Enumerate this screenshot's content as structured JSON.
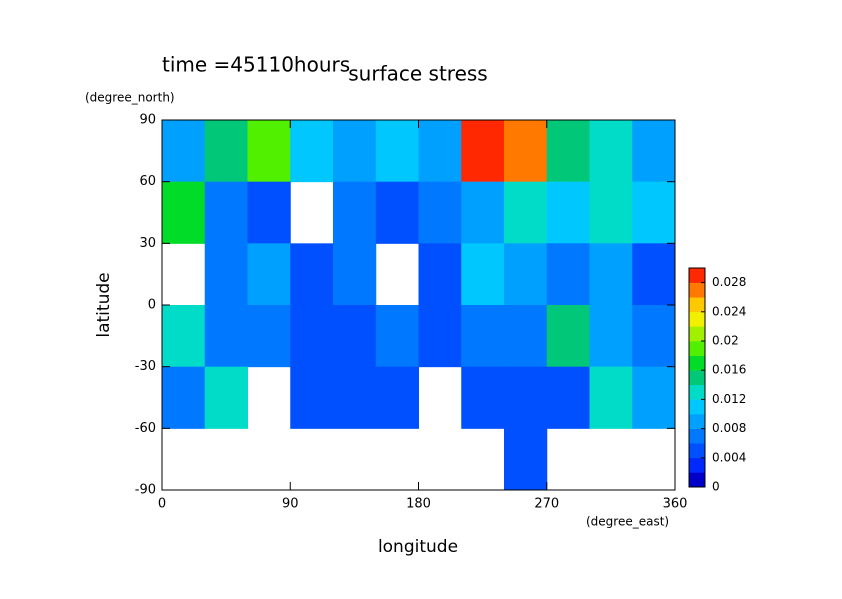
{
  "chart_data": {
    "type": "contour",
    "title": "surface stress",
    "annotation": "time =45110hours",
    "xlabel": "longitude",
    "ylabel": "latitude",
    "xunit": "(degree_east)",
    "yunit": "(degree_north)",
    "xlim": [
      0,
      360
    ],
    "xticks": [
      0,
      90,
      180,
      270,
      360
    ],
    "ylim": [
      -90,
      90
    ],
    "yticks": [
      -90,
      -60,
      -30,
      0,
      30,
      60,
      90
    ],
    "x": [
      0,
      30,
      60,
      90,
      120,
      150,
      180,
      210,
      240,
      270,
      300,
      330,
      360
    ],
    "y": [
      90,
      60,
      30,
      0,
      -30,
      -60,
      -90
    ],
    "z": [
      [
        0.008,
        0.014,
        0.018,
        0.01,
        0.008,
        0.01,
        0.008,
        0.028,
        0.026,
        0.014,
        0.012,
        0.008
      ],
      [
        0.016,
        0.006,
        0.004,
        null,
        0.006,
        0.004,
        0.006,
        0.008,
        0.012,
        0.01,
        0.012,
        0.01
      ],
      [
        null,
        0.006,
        0.008,
        0.004,
        0.006,
        null,
        0.004,
        0.01,
        0.008,
        0.006,
        0.008,
        0.004
      ],
      [
        0.012,
        0.006,
        0.006,
        0.004,
        0.004,
        0.006,
        0.004,
        0.006,
        0.006,
        0.014,
        0.008,
        0.006
      ],
      [
        0.006,
        0.012,
        null,
        0.004,
        0.004,
        0.004,
        null,
        0.004,
        0.004,
        0.004,
        0.012,
        0.008
      ],
      [
        null,
        null,
        null,
        null,
        null,
        null,
        null,
        null,
        0.004,
        null,
        null,
        null
      ]
    ],
    "clim": [
      0,
      0.03
    ],
    "cticks": [
      0,
      0.004,
      0.008,
      0.012,
      0.016,
      0.02,
      0.024,
      0.028
    ],
    "colors": [
      "#0000c8",
      "#0028ff",
      "#0050ff",
      "#0078ff",
      "#00a0ff",
      "#00c8ff",
      "#00dcc8",
      "#00c878",
      "#00dc28",
      "#50f000",
      "#a0f000",
      "#f0f000",
      "#ffc800",
      "#ff7800",
      "#ff2800"
    ]
  }
}
